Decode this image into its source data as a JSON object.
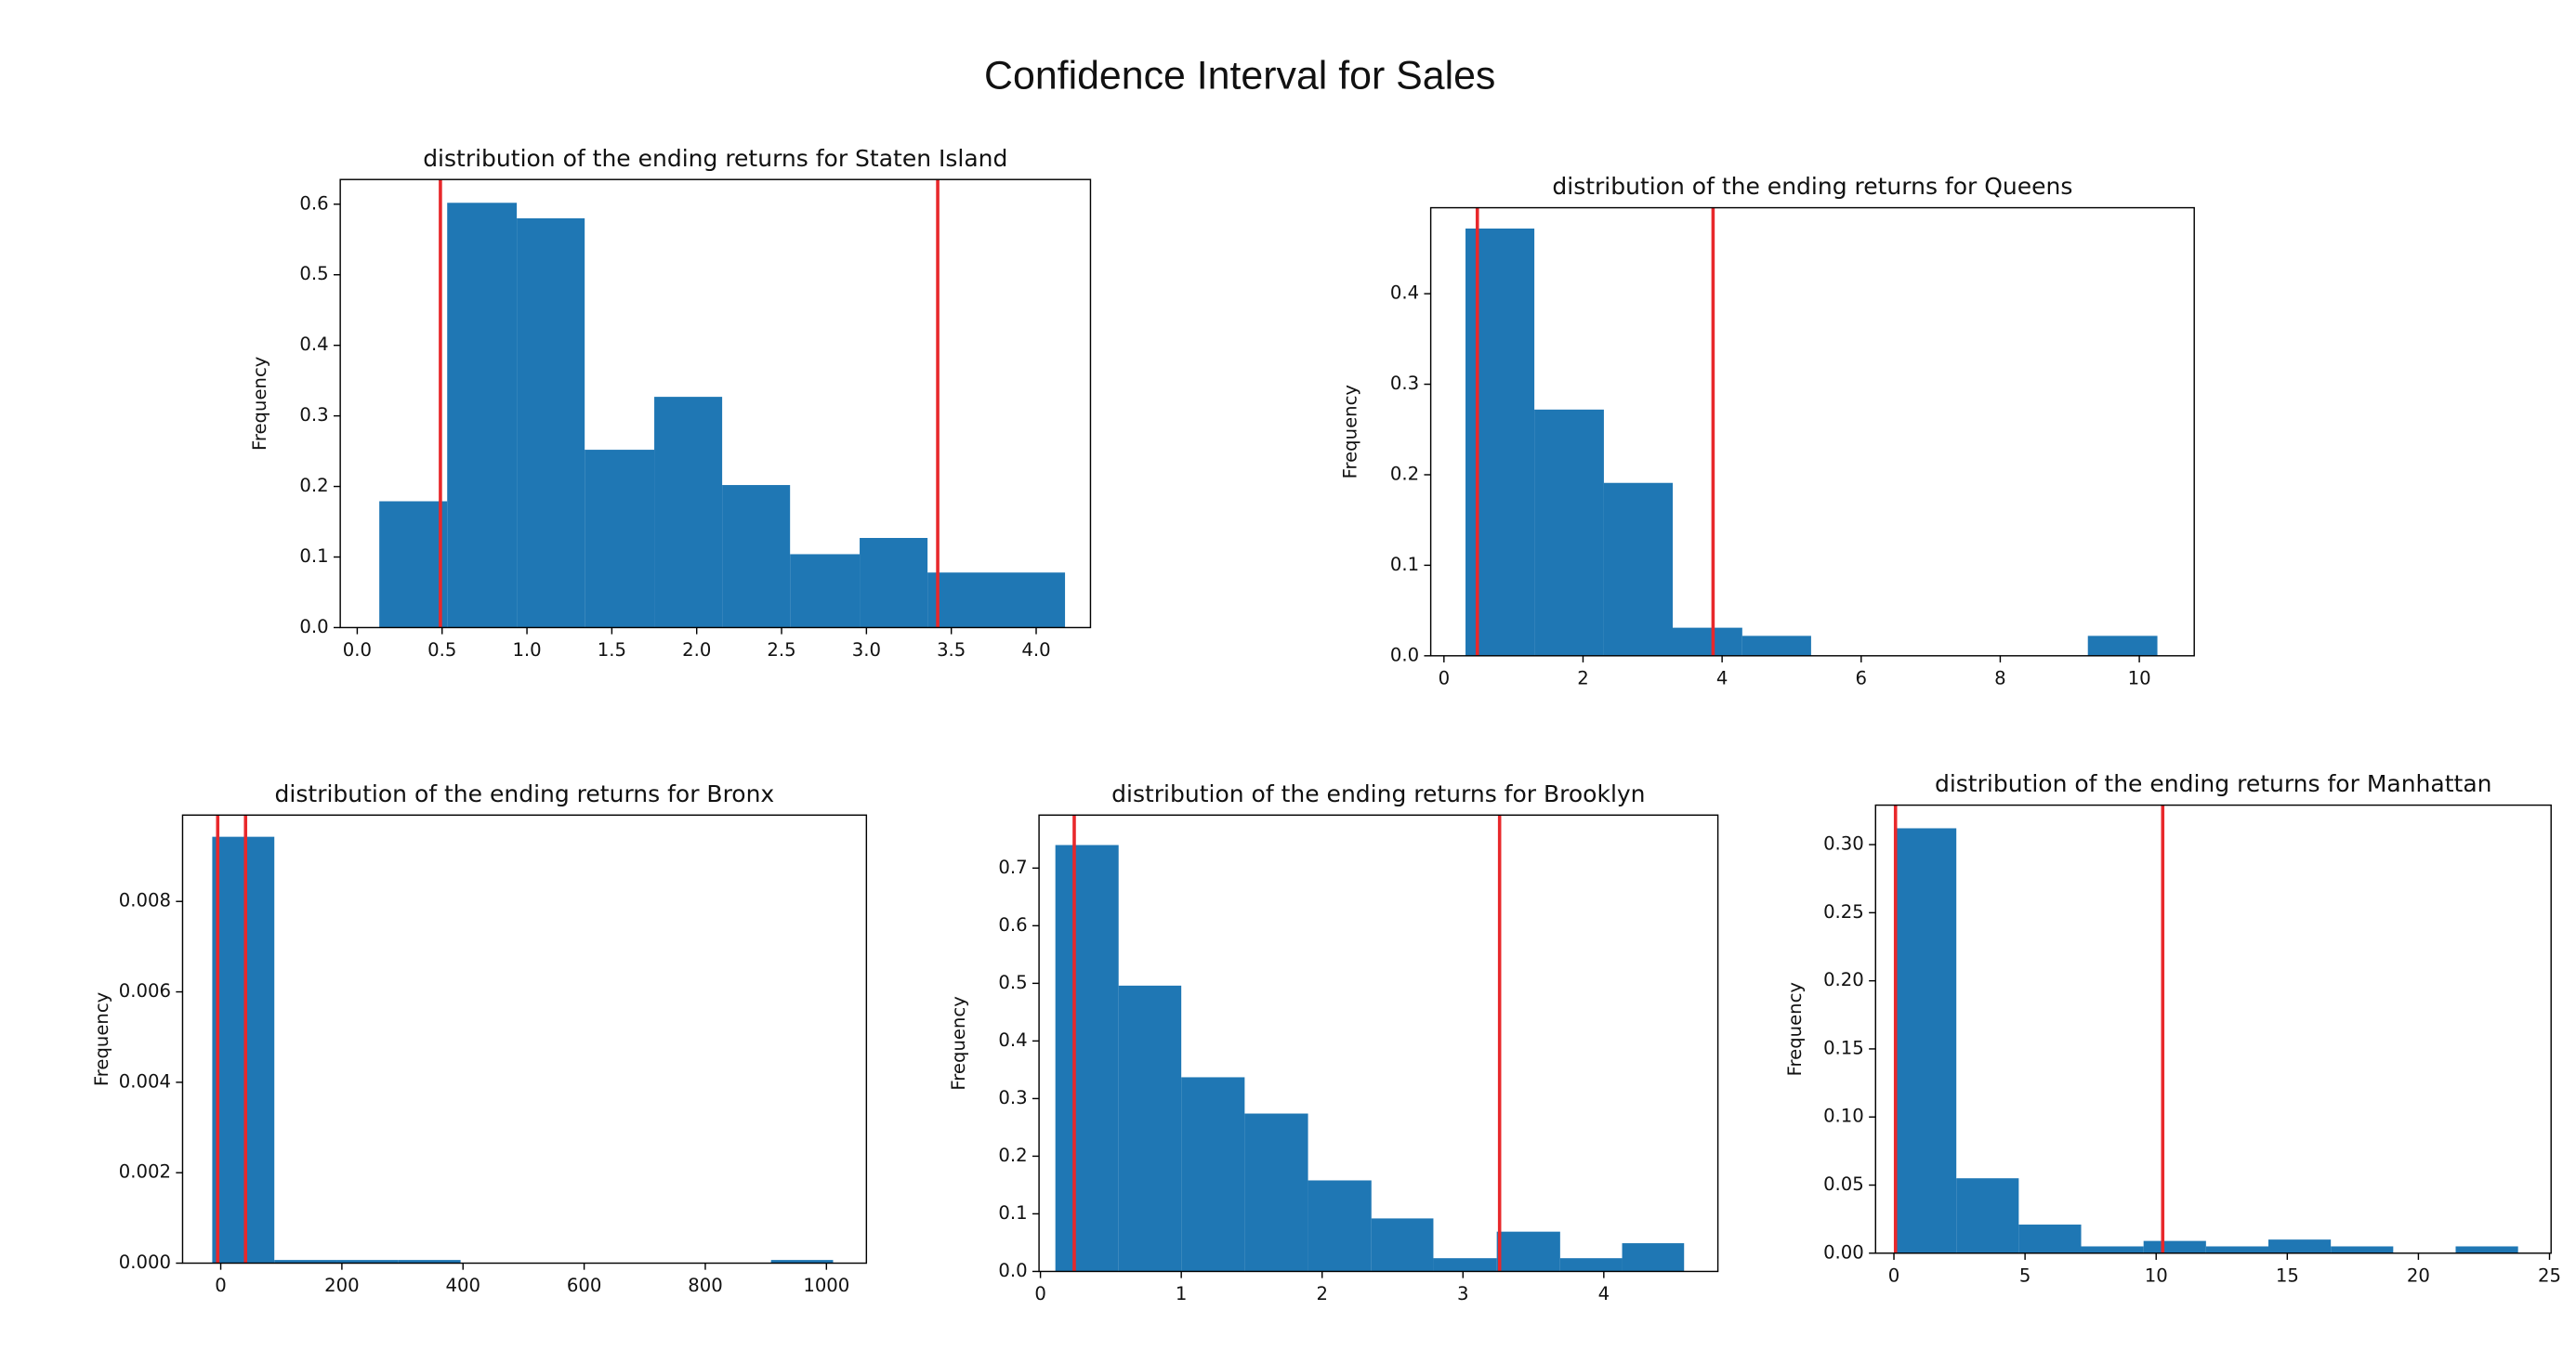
{
  "title": "Confidence Interval for Sales",
  "chart_data": [
    {
      "type": "histogram",
      "title": "distribution of the ending returns for Staten Island",
      "ylabel": "Frequency",
      "color": "#1f77b4",
      "vline_color": "#e8282b",
      "bins": [
        0.13,
        0.53,
        0.94,
        1.34,
        1.75,
        2.15,
        2.55,
        2.96,
        3.36,
        3.77,
        4.17
      ],
      "values": [
        0.179,
        0.602,
        0.58,
        0.252,
        0.327,
        0.202,
        0.104,
        0.127,
        0.078,
        0.078
      ],
      "vlines": [
        0.49,
        3.42
      ],
      "xlim": [
        -0.1,
        4.32
      ],
      "ylim": [
        0,
        0.635
      ],
      "xticks": [
        {
          "value": 0,
          "label": "0.0"
        },
        0.5,
        {
          "value": 1,
          "label": "1.0"
        },
        1.5,
        {
          "value": 2,
          "label": "2.0"
        },
        2.5,
        {
          "value": 3,
          "label": "3.0"
        },
        3.5,
        {
          "value": 4,
          "label": "4.0"
        }
      ],
      "yticks": [
        {
          "value": 0,
          "label": "0.0"
        },
        0.1,
        0.2,
        0.3,
        0.4,
        0.5,
        0.6
      ]
    },
    {
      "type": "histogram",
      "title": "distribution of the ending returns for Queens",
      "ylabel": "Frequency",
      "color": "#1f77b4",
      "vline_color": "#e8282b",
      "bins": [
        0.31,
        1.3,
        2.3,
        3.29,
        4.29,
        5.28,
        6.28,
        7.27,
        8.27,
        9.26,
        10.26
      ],
      "values": [
        0.472,
        0.272,
        0.191,
        0.031,
        0.022,
        0,
        0,
        0,
        0,
        0.022
      ],
      "vlines": [
        0.48,
        3.87
      ],
      "xlim": [
        -0.19,
        10.79
      ],
      "ylim": [
        0,
        0.495
      ],
      "xticks": [
        0,
        2,
        4,
        6,
        8,
        10
      ],
      "yticks": [
        {
          "value": 0,
          "label": "0.0"
        },
        0.1,
        0.2,
        0.3,
        0.4
      ]
    },
    {
      "type": "histogram",
      "title": "distribution of the ending returns for Bronx",
      "ylabel": "Frequency",
      "color": "#1f77b4",
      "vline_color": "#e8282b",
      "bins": [
        -14,
        88.5,
        191,
        293.5,
        396,
        498.5,
        601,
        703.5,
        806,
        908.5,
        1011
      ],
      "values": [
        0.00943,
        7e-05,
        7e-05,
        7e-05,
        0,
        0,
        0,
        0,
        0,
        7e-05
      ],
      "vlines": [
        -5,
        41
      ],
      "xlim": [
        -63,
        1066
      ],
      "ylim": [
        0,
        0.00991
      ],
      "xticks": [
        0,
        200,
        400,
        600,
        800,
        1000
      ],
      "yticks": [
        {
          "value": 0,
          "label": "0.000"
        },
        0.002,
        0.004,
        0.006,
        0.008
      ]
    },
    {
      "type": "histogram",
      "title": "distribution of the ending returns for Brooklyn",
      "ylabel": "Frequency",
      "color": "#1f77b4",
      "vline_color": "#e8282b",
      "bins": [
        0.106,
        0.555,
        1.0,
        1.45,
        1.9,
        2.35,
        2.79,
        3.24,
        3.69,
        4.13,
        4.57
      ],
      "values": [
        0.74,
        0.496,
        0.337,
        0.274,
        0.158,
        0.092,
        0.023,
        0.069,
        0.023,
        0.049
      ],
      "vlines": [
        0.24,
        3.26
      ],
      "xlim": [
        -0.01,
        4.81
      ],
      "ylim": [
        0,
        0.792
      ],
      "xticks": [
        0,
        1,
        2,
        3,
        4
      ],
      "yticks": [
        {
          "value": 0,
          "label": "0.0"
        },
        0.1,
        0.2,
        0.3,
        0.4,
        0.5,
        0.6,
        0.7
      ]
    },
    {
      "type": "histogram",
      "title": "distribution of the ending returns for Manhattan",
      "ylabel": "Frequency",
      "color": "#1f77b4",
      "vline_color": "#e8282b",
      "bins": [
        0,
        2.38,
        4.76,
        7.14,
        9.52,
        11.9,
        14.28,
        16.66,
        19.04,
        21.42,
        23.8
      ],
      "values": [
        0.312,
        0.055,
        0.021,
        0.005,
        0.009,
        0.005,
        0.01,
        0.005,
        0,
        0.005
      ],
      "vlines": [
        0.06,
        10.25
      ],
      "xlim": [
        -0.7,
        25.06
      ],
      "ylim": [
        0,
        0.329
      ],
      "xticks": [
        0,
        5,
        10,
        15,
        20,
        25
      ],
      "yticks": [
        {
          "value": 0,
          "label": "0.00"
        },
        0.05,
        {
          "value": 0.1,
          "label": "0.10"
        },
        0.15,
        {
          "value": 0.2,
          "label": "0.20"
        },
        0.25,
        {
          "value": 0.3,
          "label": "0.30"
        }
      ]
    }
  ]
}
